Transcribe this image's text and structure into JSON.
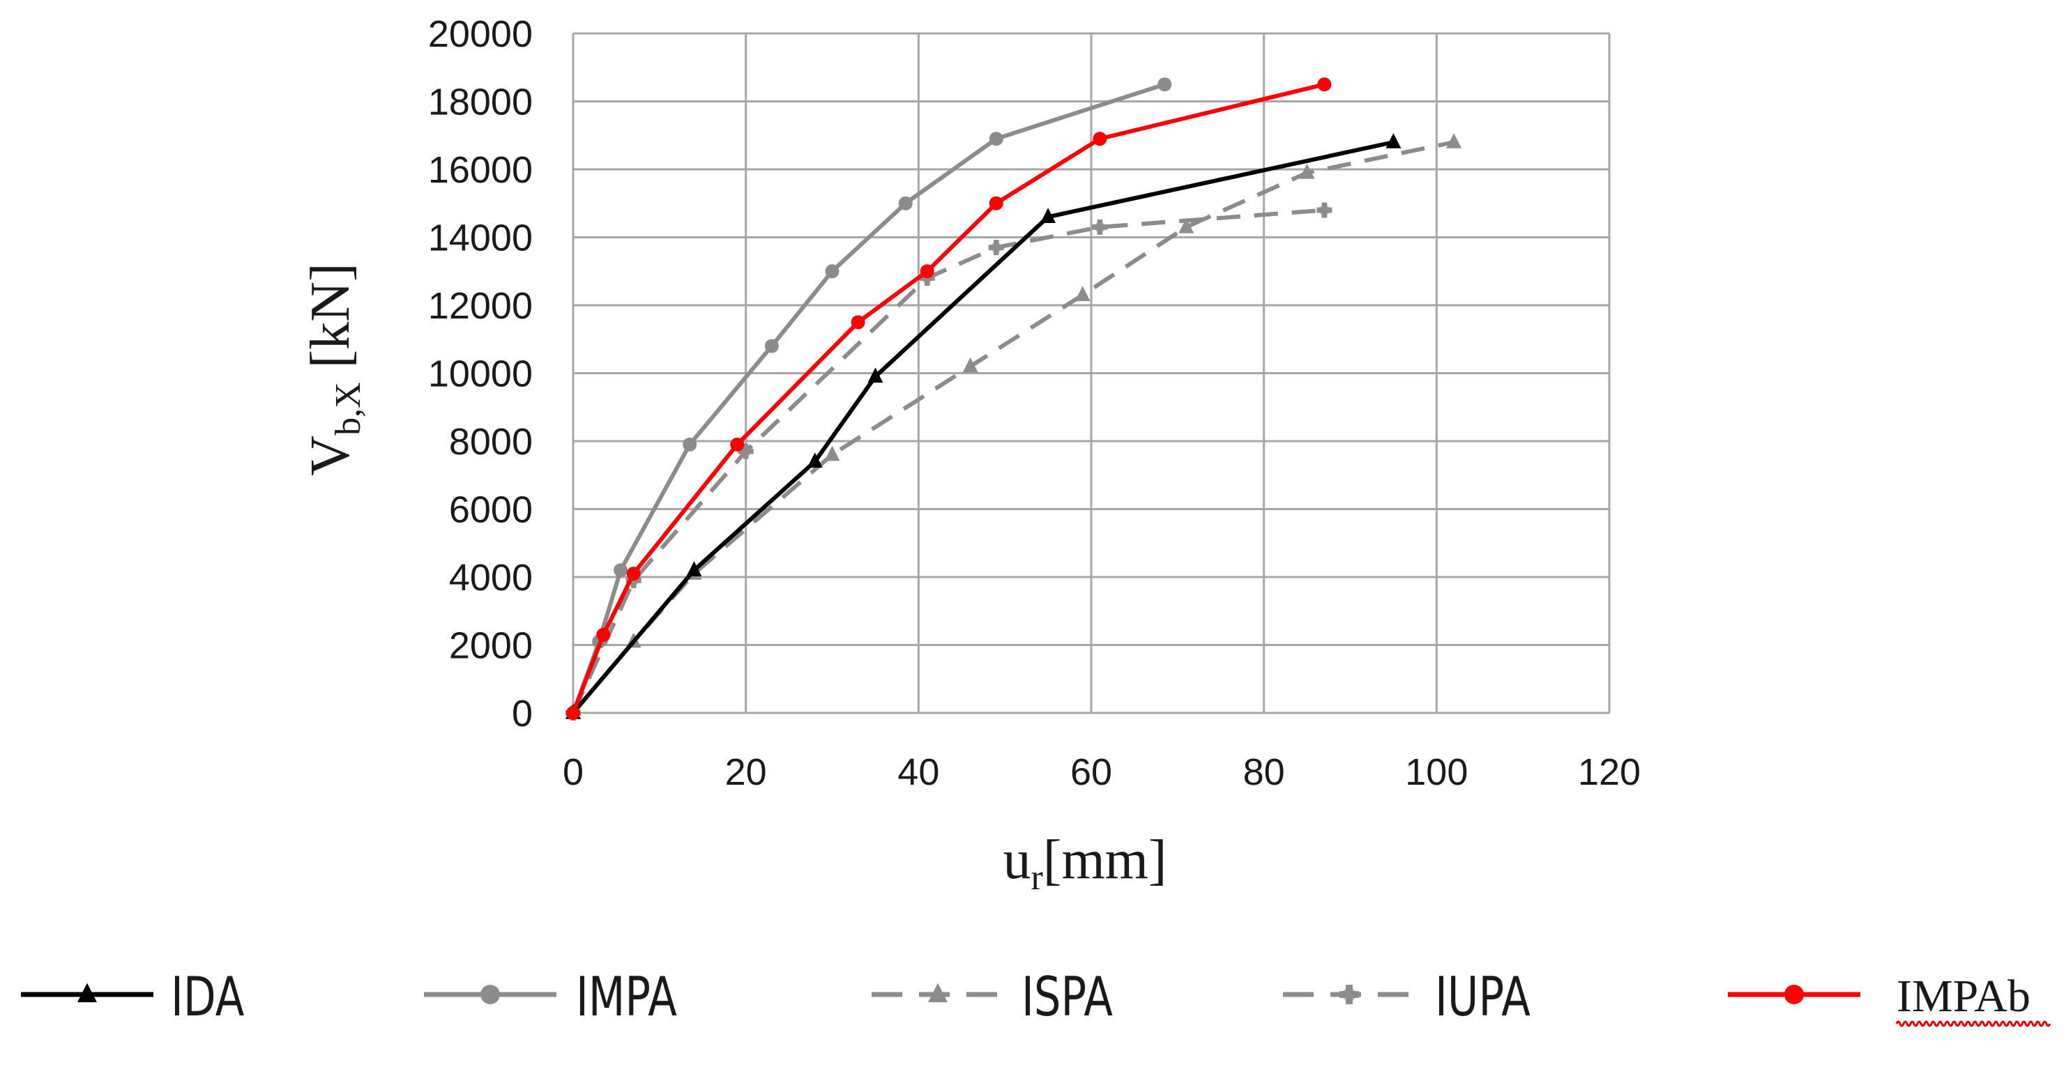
{
  "chart_data": {
    "type": "line",
    "title": "",
    "xlabel_main": "u",
    "xlabel_sub": "r",
    "xlabel_unit": "[mm]",
    "ylabel_main": "V",
    "ylabel_sub": "b,X",
    "ylabel_unit": " [kN]",
    "xlim": [
      0,
      120
    ],
    "ylim": [
      0,
      20000
    ],
    "xticks": [
      0,
      20,
      40,
      60,
      80,
      100,
      120
    ],
    "yticks": [
      0,
      2000,
      4000,
      6000,
      8000,
      10000,
      12000,
      14000,
      16000,
      18000,
      20000
    ],
    "grid": true,
    "legend_position": "bottom",
    "series": [
      {
        "name": "IDA",
        "color": "#000000",
        "line": "solid",
        "marker": "triangle",
        "x": [
          0,
          14,
          28,
          35,
          55,
          95
        ],
        "y": [
          0,
          4200,
          7400,
          9900,
          14600,
          16800
        ]
      },
      {
        "name": "IMPA",
        "color": "#8c8c8c",
        "line": "solid",
        "marker": "circle",
        "x": [
          0,
          3,
          5.5,
          13.5,
          23,
          30,
          38.5,
          49,
          68.5
        ],
        "y": [
          0,
          2100,
          4200,
          7900,
          10800,
          13000,
          15000,
          16900,
          18500
        ]
      },
      {
        "name": "ISPA",
        "color": "#8c8c8c",
        "line": "dashed",
        "marker": "triangle",
        "x": [
          0,
          7,
          14,
          30,
          46,
          59,
          71,
          85,
          102
        ],
        "y": [
          0,
          2100,
          4100,
          7600,
          10200,
          12300,
          14300,
          15900,
          16800
        ]
      },
      {
        "name": "IUPA",
        "color": "#8c8c8c",
        "line": "dashed",
        "marker": "cross",
        "x": [
          0,
          7,
          20,
          41,
          49,
          61,
          87
        ],
        "y": [
          0,
          3900,
          7700,
          12800,
          13700,
          14300,
          14800
        ]
      },
      {
        "name": "IMPAb",
        "color": "#ff0000",
        "line": "solid",
        "marker": "circle",
        "x": [
          0,
          3.5,
          7,
          19,
          33,
          41,
          49,
          61,
          87
        ],
        "y": [
          0,
          2300,
          4100,
          7900,
          11500,
          13000,
          15000,
          16900,
          18500
        ]
      }
    ]
  }
}
